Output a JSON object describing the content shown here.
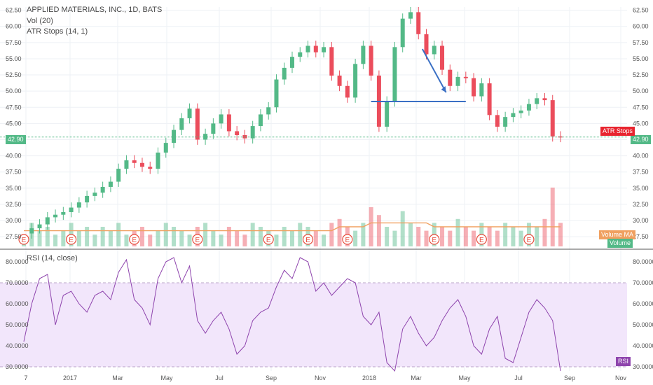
{
  "legend": {
    "title": "APPLIED MATERIALS, INC., 1D, BATS",
    "vol": "Vol (20)",
    "atr": "ATR Stops (14, 1)",
    "rsi": "RSI (14, close)"
  },
  "tags": {
    "last_price": "42.90",
    "atr_stops": "ATR Stops",
    "volume_ma": "Volume MA",
    "volume": "Volume",
    "rsi": "RSI"
  },
  "colors": {
    "up": "#53b987",
    "down": "#eb4d5c",
    "rsi_line": "#8e44ad",
    "rsi_band": "#f2e6fb",
    "drawing": "#3a6fc4",
    "volume_ma": "#f0a060",
    "last_price_bg": "#53b987",
    "atr_bg": "#e8242f",
    "volume_ma_bg": "#f0a060",
    "volume_bg": "#53b987",
    "rsi_bg": "#8e44ad",
    "earnings": "#e74c3c"
  },
  "earnings_marker": "E",
  "chart_data": [
    {
      "type": "line",
      "title": "APPLIED MATERIALS, INC., 1D, BATS",
      "ylim": [
        26,
        63
      ],
      "y_ticks": [
        "62.50",
        "60.00",
        "57.50",
        "55.00",
        "52.50",
        "50.00",
        "47.50",
        "45.00",
        "42.50",
        "40.00",
        "37.50",
        "35.00",
        "32.50",
        "30.00",
        "27.50"
      ],
      "x_ticks": [
        "7",
        "2017",
        "Mar",
        "May",
        "Jul",
        "Sep",
        "Nov",
        "2018",
        "Mar",
        "May",
        "Jul",
        "Sep",
        "Nov"
      ],
      "series": [
        {
          "values": [
            28.0,
            28.8,
            29.4,
            30.5,
            30.9,
            31.3,
            32.0,
            32.8,
            33.8,
            34.3,
            35.2,
            36.0,
            38.0,
            39.3,
            38.9,
            38.3,
            38.0,
            40.5,
            42.0,
            44.0,
            45.8,
            47.3,
            42.5,
            43.4,
            45.0,
            46.4,
            43.8,
            43.2,
            42.7,
            44.6,
            46.4,
            47.5,
            51.8,
            53.6,
            55.3,
            56.0,
            57.0,
            56.0,
            56.8,
            52.4,
            50.8,
            49.0,
            54.2,
            57.0,
            52.4,
            44.5,
            48.4,
            56.8,
            61.2,
            62.2,
            58.8,
            55.7,
            57.0,
            53.3,
            50.8,
            52.2,
            52.0,
            49.2,
            51.2,
            46.3,
            44.5,
            46.0,
            46.6,
            47.0,
            48.0,
            48.9,
            48.6,
            43.0,
            42.9
          ]
        }
      ]
    },
    {
      "type": "bar",
      "title": "Vol (20)",
      "series": [
        {
          "name": "Volume",
          "values": [
            3,
            6,
            4,
            5,
            3,
            4,
            6,
            4,
            5,
            3,
            5,
            4,
            6,
            3,
            4,
            5,
            3,
            4,
            6,
            5,
            4,
            3,
            5,
            6,
            4,
            3,
            5,
            4,
            3,
            6,
            5,
            4,
            3,
            5,
            4,
            6,
            5,
            4,
            3,
            6,
            7,
            5,
            4,
            6,
            10,
            8,
            5,
            4,
            9,
            6,
            5,
            4,
            6,
            5,
            4,
            7,
            5,
            4,
            6,
            5,
            4,
            6,
            5,
            4,
            6,
            5,
            7,
            15,
            6
          ]
        },
        {
          "name": "Volume MA",
          "values": [
            4,
            4,
            4,
            4,
            4,
            4,
            4,
            4,
            4,
            4,
            4,
            4,
            4,
            4,
            4,
            4,
            4,
            4,
            4,
            4,
            4,
            4,
            4,
            4,
            4,
            4,
            4,
            4,
            4,
            4,
            4,
            4,
            4,
            4,
            4,
            4,
            4,
            4,
            4,
            4,
            5,
            5,
            5,
            5,
            6,
            6,
            6,
            6,
            6,
            6,
            6,
            6,
            5,
            5,
            5,
            5,
            5,
            5,
            5,
            5,
            5,
            5,
            5,
            5,
            5,
            5,
            5,
            5,
            5
          ]
        }
      ],
      "earnings_at": [
        0,
        6,
        14,
        22,
        31,
        36,
        41,
        52,
        58,
        64
      ]
    },
    {
      "type": "line",
      "title": "RSI (14, close)",
      "ylim": [
        28,
        84
      ],
      "y_ticks": [
        "80.0000",
        "70.0000",
        "60.0000",
        "50.0000",
        "40.0000",
        "30.0000"
      ],
      "band": [
        30,
        70
      ],
      "series": [
        {
          "name": "RSI",
          "values": [
            42,
            60,
            72,
            74,
            50,
            64,
            66,
            60,
            56,
            64,
            66,
            62,
            75,
            81,
            62,
            58,
            50,
            72,
            80,
            82,
            70,
            78,
            52,
            46,
            52,
            56,
            48,
            36,
            40,
            52,
            56,
            58,
            68,
            76,
            72,
            82,
            80,
            66,
            70,
            64,
            68,
            72,
            70,
            54,
            50,
            56,
            32,
            28,
            48,
            54,
            46,
            40,
            44,
            52,
            58,
            62,
            54,
            40,
            36,
            48,
            54,
            34,
            32,
            44,
            56,
            62,
            58,
            52,
            28
          ]
        }
      ]
    }
  ]
}
